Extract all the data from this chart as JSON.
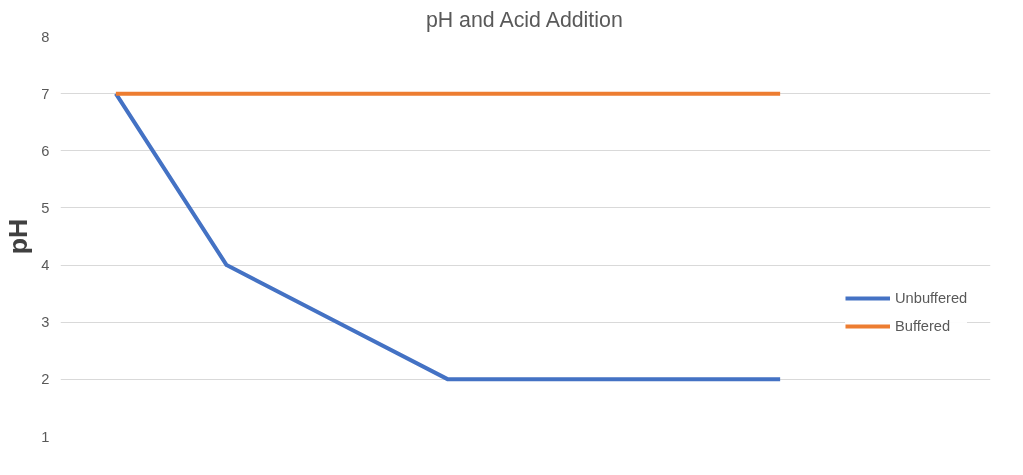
{
  "chart_data": {
    "type": "line",
    "title": "pH and Acid Addition",
    "ylabel": "pH",
    "categories": [
      null,
      null,
      null,
      null,
      null,
      null,
      null
    ],
    "series": [
      {
        "name": "Unbuffered",
        "color": "#4472c4",
        "values": [
          7,
          4,
          3,
          2,
          2,
          2,
          2
        ]
      },
      {
        "name": "Buffered",
        "color": "#ed7d31",
        "values": [
          7,
          7,
          7,
          7,
          7,
          7,
          7
        ]
      }
    ],
    "ylim": [
      1,
      8
    ],
    "yticks": [
      1,
      2,
      3,
      4,
      5,
      6,
      7,
      8
    ],
    "grid": "y",
    "legend": "right",
    "marker": "none",
    "line_style": "solid"
  }
}
